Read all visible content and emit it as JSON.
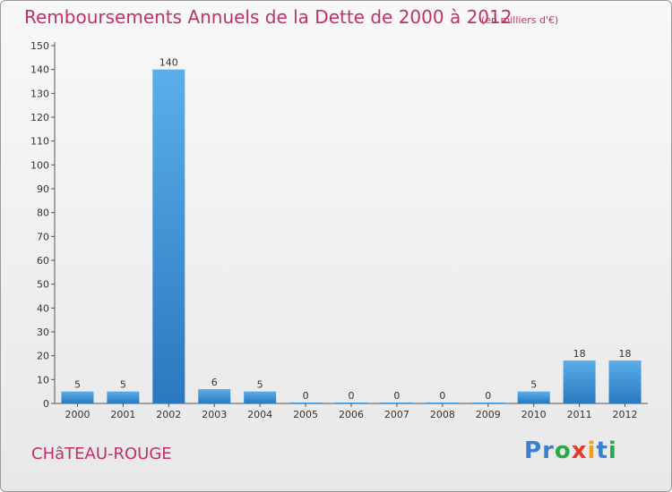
{
  "chart_data": {
    "type": "bar",
    "title": "Remboursements Annuels de la Dette de 2000 à 2012",
    "subtitle": "(en milliers d'€)",
    "categories": [
      "2000",
      "2001",
      "2002",
      "2003",
      "2004",
      "2005",
      "2006",
      "2007",
      "2008",
      "2009",
      "2010",
      "2011",
      "2012"
    ],
    "values": [
      5,
      5,
      140,
      6,
      5,
      0,
      0,
      0,
      0,
      0,
      5,
      18,
      18
    ],
    "xlabel": "",
    "ylabel": "",
    "ylim": [
      0,
      150
    ],
    "yticks": [
      0,
      10,
      20,
      30,
      40,
      50,
      60,
      70,
      80,
      90,
      100,
      110,
      120,
      130,
      140,
      150
    ],
    "grid": false,
    "bar_color": "#3a8fd6"
  },
  "footer": {
    "place": "CHâTEAU-ROUGE",
    "logo": [
      "P",
      "r",
      "o",
      "x",
      "i",
      "t",
      "i"
    ],
    "logo_colors": [
      "#3b7fd0",
      "#3b7fd0",
      "#2aa84a",
      "#e23b2e",
      "#f0a020",
      "#3b7fd0",
      "#2aa84a"
    ]
  }
}
